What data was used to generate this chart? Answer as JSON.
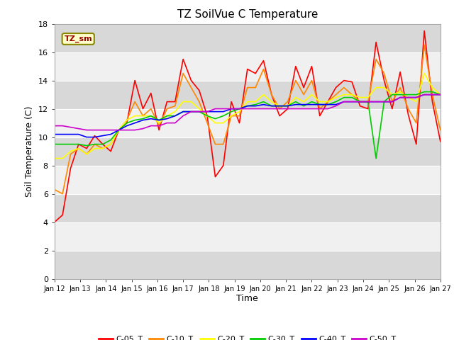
{
  "title": "TZ SoilVue C Temperature",
  "xlabel": "Time",
  "ylabel": "Soil Temperature (C)",
  "ylim": [
    0,
    18
  ],
  "yticks": [
    0,
    2,
    4,
    6,
    8,
    10,
    12,
    14,
    16,
    18
  ],
  "x_labels": [
    "Jan 12",
    "Jan 13",
    "Jan 14",
    "Jan 15",
    "Jan 16",
    "Jan 17",
    "Jan 18",
    "Jan 19",
    "Jan 20",
    "Jan 21",
    "Jan 22",
    "Jan 23",
    "Jan 24",
    "Jan 25",
    "Jan 26",
    "Jan 27"
  ],
  "legend_label": "TZ_sm",
  "fig_bg": "#ffffff",
  "plot_bg": "#e8e8e8",
  "band_light": "#f0f0f0",
  "band_dark": "#d8d8d8",
  "line_colors": {
    "C-05_T": "#ff0000",
    "C-10_T": "#ff8800",
    "C-20_T": "#ffff00",
    "C-30_T": "#00cc00",
    "C-40_T": "#0000ff",
    "C-50_T": "#cc00cc"
  },
  "series": {
    "C-05_T": [
      4.0,
      4.5,
      7.8,
      9.5,
      9.2,
      10.1,
      9.5,
      9.0,
      10.5,
      11.0,
      14.0,
      12.0,
      13.1,
      10.5,
      12.5,
      12.5,
      15.5,
      14.0,
      13.3,
      11.5,
      7.2,
      8.0,
      12.5,
      11.0,
      14.8,
      14.5,
      15.4,
      13.0,
      11.5,
      12.0,
      15.0,
      13.5,
      15.0,
      11.5,
      12.5,
      13.5,
      14.0,
      13.9,
      12.2,
      12.0,
      16.7,
      14.0,
      12.0,
      14.6,
      11.6,
      9.5,
      17.5,
      12.5,
      9.7
    ],
    "C-10_T": [
      6.3,
      6.0,
      8.8,
      9.2,
      8.8,
      9.5,
      9.2,
      9.5,
      10.5,
      11.2,
      12.5,
      11.5,
      12.0,
      10.8,
      12.0,
      12.2,
      14.5,
      13.5,
      12.5,
      11.0,
      9.5,
      9.5,
      11.5,
      11.5,
      13.5,
      13.5,
      14.8,
      13.0,
      12.0,
      12.5,
      14.0,
      13.0,
      14.0,
      12.0,
      12.5,
      13.0,
      13.5,
      13.0,
      12.5,
      12.5,
      15.5,
      14.5,
      12.5,
      13.5,
      12.0,
      11.0,
      16.5,
      13.0,
      10.5
    ],
    "C-20_T": [
      8.5,
      8.5,
      9.0,
      9.2,
      8.8,
      9.2,
      9.2,
      9.5,
      10.5,
      11.2,
      11.5,
      11.5,
      11.5,
      11.0,
      11.5,
      11.8,
      12.5,
      12.5,
      12.0,
      11.5,
      11.0,
      11.0,
      11.5,
      11.8,
      12.5,
      12.5,
      13.0,
      12.5,
      12.2,
      12.2,
      12.8,
      12.5,
      13.0,
      12.5,
      12.5,
      12.8,
      13.0,
      13.0,
      12.8,
      12.8,
      13.5,
      13.5,
      13.0,
      13.2,
      12.8,
      12.5,
      14.5,
      13.5,
      13.0
    ],
    "C-30_T": [
      9.5,
      9.5,
      9.5,
      9.5,
      9.4,
      9.5,
      9.5,
      9.8,
      10.5,
      11.0,
      11.2,
      11.3,
      11.5,
      11.2,
      11.5,
      11.5,
      11.8,
      11.8,
      11.8,
      11.5,
      11.3,
      11.5,
      11.8,
      12.0,
      12.2,
      12.3,
      12.5,
      12.2,
      12.2,
      12.2,
      12.5,
      12.2,
      12.5,
      12.3,
      12.3,
      12.5,
      12.8,
      12.8,
      12.5,
      12.5,
      8.5,
      12.5,
      13.0,
      13.0,
      13.0,
      13.0,
      13.2,
      13.2,
      13.0
    ],
    "C-40_T": [
      10.2,
      10.2,
      10.2,
      10.2,
      10.0,
      10.0,
      10.1,
      10.2,
      10.5,
      10.8,
      11.0,
      11.2,
      11.3,
      11.2,
      11.3,
      11.5,
      11.8,
      11.8,
      11.8,
      11.8,
      11.8,
      11.8,
      12.0,
      12.0,
      12.2,
      12.2,
      12.3,
      12.2,
      12.2,
      12.2,
      12.3,
      12.3,
      12.3,
      12.3,
      12.3,
      12.3,
      12.5,
      12.5,
      12.5,
      12.5,
      12.5,
      12.5,
      12.5,
      12.8,
      12.8,
      12.8,
      13.0,
      13.0,
      13.0
    ],
    "C-50_T": [
      10.8,
      10.8,
      10.7,
      10.6,
      10.5,
      10.5,
      10.5,
      10.5,
      10.5,
      10.5,
      10.5,
      10.6,
      10.8,
      10.8,
      11.0,
      11.0,
      11.5,
      11.8,
      11.8,
      11.8,
      12.0,
      12.0,
      12.0,
      12.0,
      12.0,
      12.0,
      12.0,
      12.0,
      12.0,
      12.0,
      12.0,
      12.0,
      12.0,
      12.0,
      12.0,
      12.2,
      12.5,
      12.5,
      12.5,
      12.5,
      12.5,
      12.5,
      12.5,
      12.8,
      12.8,
      12.8,
      13.0,
      13.0,
      13.0
    ]
  }
}
